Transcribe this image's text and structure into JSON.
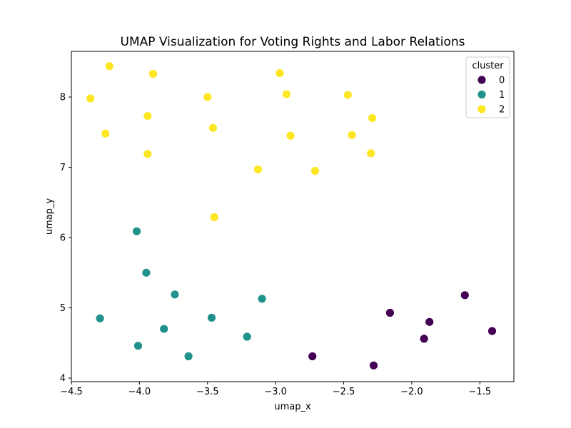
{
  "chart_data": {
    "type": "scatter",
    "title": "UMAP Visualization for Voting Rights and Labor Relations",
    "xlabel": "umap_x",
    "ylabel": "umap_y",
    "xlim": [
      -4.5,
      -1.25
    ],
    "ylim": [
      3.95,
      8.65
    ],
    "xticks": [
      -4.5,
      -4.0,
      -3.5,
      -3.0,
      -2.5,
      -2.0,
      -1.5
    ],
    "xtick_labels": [
      "−4.5",
      "−4.0",
      "−3.5",
      "−3.0",
      "−2.5",
      "−2.0",
      "−1.5"
    ],
    "yticks": [
      4,
      5,
      6,
      7,
      8
    ],
    "ytick_labels": [
      "4",
      "5",
      "6",
      "7",
      "8"
    ],
    "grid": false,
    "legend": {
      "title": "cluster",
      "placement": "top-right",
      "entries": [
        "0",
        "1",
        "2"
      ]
    },
    "series": [
      {
        "name": "0",
        "color": "#440154",
        "points": [
          [
            -2.73,
            4.31
          ],
          [
            -2.28,
            4.18
          ],
          [
            -2.16,
            4.93
          ],
          [
            -1.91,
            4.56
          ],
          [
            -1.87,
            4.8
          ],
          [
            -1.61,
            5.18
          ],
          [
            -1.41,
            4.67
          ]
        ]
      },
      {
        "name": "1",
        "color": "#21918c",
        "points": [
          [
            -4.29,
            4.85
          ],
          [
            -4.02,
            6.09
          ],
          [
            -4.01,
            4.46
          ],
          [
            -3.95,
            5.5
          ],
          [
            -3.82,
            4.7
          ],
          [
            -3.74,
            5.19
          ],
          [
            -3.64,
            4.31
          ],
          [
            -3.47,
            4.86
          ],
          [
            -3.21,
            4.59
          ],
          [
            -3.1,
            5.13
          ]
        ]
      },
      {
        "name": "2",
        "color": "#fde725",
        "points": [
          [
            -4.36,
            7.98
          ],
          [
            -4.25,
            7.48
          ],
          [
            -4.22,
            8.44
          ],
          [
            -3.94,
            7.73
          ],
          [
            -3.94,
            7.19
          ],
          [
            -3.9,
            8.33
          ],
          [
            -3.5,
            8.0
          ],
          [
            -3.46,
            7.56
          ],
          [
            -3.45,
            6.29
          ],
          [
            -3.13,
            6.97
          ],
          [
            -2.97,
            8.34
          ],
          [
            -2.92,
            8.04
          ],
          [
            -2.89,
            7.45
          ],
          [
            -2.71,
            6.95
          ],
          [
            -2.47,
            8.03
          ],
          [
            -2.44,
            7.46
          ],
          [
            -2.29,
            7.7
          ],
          [
            -2.3,
            7.2
          ]
        ]
      }
    ]
  }
}
